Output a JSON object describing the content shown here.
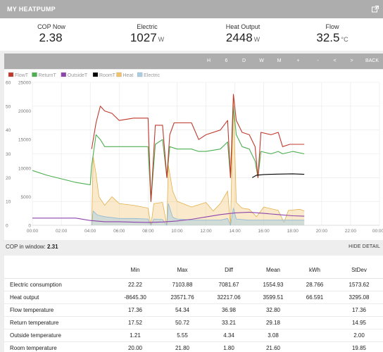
{
  "header": {
    "title": "MY HEATPUMP",
    "external_icon": "external-link-icon"
  },
  "stats": [
    {
      "label": "COP Now",
      "value": "2.38",
      "unit": ""
    },
    {
      "label": "Electric",
      "value": "1027",
      "unit": "W"
    },
    {
      "label": "Heat Output",
      "value": "2448",
      "unit": "W"
    },
    {
      "label": "Flow",
      "value": "32.5",
      "unit": "°C"
    }
  ],
  "toolbar": {
    "buttons": [
      "H",
      "6",
      "D",
      "W",
      "M",
      "+",
      "-",
      "<",
      ">",
      "BACK"
    ]
  },
  "chart_data": {
    "type": "line",
    "legend": [
      {
        "name": "FlowT",
        "color": "#c0392b"
      },
      {
        "name": "ReturnT",
        "color": "#4caf50"
      },
      {
        "name": "OutsideT",
        "color": "#8e44ad"
      },
      {
        "name": "RoomT",
        "color": "#000000"
      },
      {
        "name": "Heat",
        "color": "#f0c36b"
      },
      {
        "name": "Electric",
        "color": "#a9cde3"
      }
    ],
    "y_left_ticks": [
      "0",
      "10",
      "20",
      "30",
      "40",
      "50",
      "60"
    ],
    "y_right_ticks": [
      "0",
      "5000",
      "10000",
      "15000",
      "20000",
      "25000"
    ],
    "x_ticks": [
      "00:00",
      "02:00",
      "04:00",
      "06:00",
      "08:00",
      "10:00",
      "12:00",
      "14:00",
      "16:00",
      "18:00",
      "20:00",
      "22:00",
      "00:00"
    ],
    "y_left_range": [
      0,
      60
    ],
    "y_right_range": [
      0,
      25000
    ],
    "x_range_hours": [
      0,
      24
    ],
    "legend_placement": "top-left",
    "grid": true,
    "series": [
      {
        "name": "FlowT",
        "axis": "left",
        "points": [
          [
            4.1,
            32
          ],
          [
            4.4,
            43
          ],
          [
            4.7,
            50
          ],
          [
            5,
            48
          ],
          [
            5.5,
            47
          ],
          [
            6,
            44
          ],
          [
            7,
            45
          ],
          [
            7.8,
            45
          ],
          [
            8,
            45
          ],
          [
            8.2,
            10
          ],
          [
            8.5,
            42
          ],
          [
            9,
            42
          ],
          [
            9.3,
            20
          ],
          [
            9.5,
            38
          ],
          [
            9.8,
            43
          ],
          [
            11,
            43
          ],
          [
            11.5,
            36
          ],
          [
            12,
            38
          ],
          [
            13,
            40
          ],
          [
            13.5,
            44
          ],
          [
            13.7,
            20
          ],
          [
            13.9,
            55
          ],
          [
            14.1,
            44
          ],
          [
            14.5,
            39
          ],
          [
            15,
            38
          ],
          [
            15.4,
            33
          ],
          [
            15.6,
            20
          ],
          [
            15.8,
            39
          ],
          [
            16.5,
            38
          ],
          [
            17,
            39
          ],
          [
            17.3,
            33
          ],
          [
            17.8,
            34
          ],
          [
            18.5,
            34
          ],
          [
            18.8,
            34
          ]
        ]
      },
      {
        "name": "ReturnT",
        "axis": "left",
        "points": [
          [
            0,
            23
          ],
          [
            1,
            21
          ],
          [
            2,
            19.5
          ],
          [
            3,
            18
          ],
          [
            4,
            17
          ],
          [
            4.1,
            25
          ],
          [
            4.4,
            38
          ],
          [
            4.7,
            36
          ],
          [
            5,
            33
          ],
          [
            6,
            33
          ],
          [
            7,
            33
          ],
          [
            8,
            33
          ],
          [
            8.2,
            10
          ],
          [
            8.5,
            34
          ],
          [
            9,
            36
          ],
          [
            9.3,
            20
          ],
          [
            9.5,
            33
          ],
          [
            10,
            32
          ],
          [
            11,
            32
          ],
          [
            11.5,
            31
          ],
          [
            12,
            31
          ],
          [
            13,
            32
          ],
          [
            13.5,
            35
          ],
          [
            13.7,
            20
          ],
          [
            13.9,
            50
          ],
          [
            14.1,
            38
          ],
          [
            14.5,
            33
          ],
          [
            15,
            32
          ],
          [
            15.4,
            27
          ],
          [
            15.6,
            20
          ],
          [
            15.8,
            31
          ],
          [
            16.5,
            30
          ],
          [
            17,
            31
          ],
          [
            17.3,
            30
          ],
          [
            18,
            31
          ],
          [
            18.8,
            30
          ]
        ]
      },
      {
        "name": "OutsideT",
        "axis": "left",
        "points": [
          [
            0,
            3
          ],
          [
            1,
            3
          ],
          [
            2,
            3
          ],
          [
            3,
            3
          ],
          [
            4,
            2
          ],
          [
            5,
            1.5
          ],
          [
            6,
            1.5
          ],
          [
            7,
            1.3
          ],
          [
            8,
            1.2
          ],
          [
            9,
            1.4
          ],
          [
            10,
            1.8
          ],
          [
            11,
            2.5
          ],
          [
            12,
            3.5
          ],
          [
            13,
            4.5
          ],
          [
            14,
            5.2
          ],
          [
            15,
            5.5
          ],
          [
            16,
            5
          ],
          [
            17,
            4.5
          ],
          [
            18,
            4
          ],
          [
            18.8,
            3.8
          ]
        ]
      },
      {
        "name": "RoomT",
        "axis": "left",
        "points": [
          [
            15.2,
            20
          ],
          [
            15.5,
            21
          ],
          [
            16,
            21.3
          ],
          [
            17,
            21.5
          ],
          [
            18,
            21.6
          ],
          [
            18.8,
            21.4
          ]
        ]
      },
      {
        "name": "Heat",
        "axis": "right",
        "points": [
          [
            4.1,
            0
          ],
          [
            4.2,
            12000
          ],
          [
            4.4,
            9000
          ],
          [
            4.6,
            5000
          ],
          [
            5,
            3500
          ],
          [
            5.5,
            5000
          ],
          [
            6,
            3800
          ],
          [
            7,
            3500
          ],
          [
            8,
            3000
          ],
          [
            8.2,
            0
          ],
          [
            8.4,
            3800
          ],
          [
            9,
            4000
          ],
          [
            9.3,
            0
          ],
          [
            9.4,
            10500
          ],
          [
            9.7,
            6000
          ],
          [
            10,
            4200
          ],
          [
            11,
            3200
          ],
          [
            12,
            4000
          ],
          [
            12.5,
            2500
          ],
          [
            13,
            3800
          ],
          [
            13.5,
            6000
          ],
          [
            13.7,
            0
          ],
          [
            13.9,
            22000
          ],
          [
            14.1,
            4000
          ],
          [
            14.5,
            3000
          ],
          [
            15,
            2800
          ],
          [
            15.5,
            1500
          ],
          [
            16,
            3200
          ],
          [
            17,
            2600
          ],
          [
            17.4,
            500
          ],
          [
            17.7,
            2600
          ],
          [
            18.5,
            2800
          ],
          [
            18.8,
            2500
          ]
        ]
      },
      {
        "name": "Electric",
        "axis": "right",
        "points": [
          [
            4.1,
            0
          ],
          [
            4.2,
            2500
          ],
          [
            4.5,
            1800
          ],
          [
            5,
            1500
          ],
          [
            6,
            1200
          ],
          [
            7,
            1200
          ],
          [
            8,
            1100
          ],
          [
            8.2,
            0
          ],
          [
            8.4,
            1100
          ],
          [
            9,
            1000
          ],
          [
            9.3,
            0
          ],
          [
            9.4,
            3800
          ],
          [
            9.7,
            1400
          ],
          [
            10,
            1100
          ],
          [
            11,
            900
          ],
          [
            12,
            900
          ],
          [
            13,
            900
          ],
          [
            13.5,
            1200
          ],
          [
            13.7,
            0
          ],
          [
            13.9,
            3000
          ],
          [
            14.1,
            1100
          ],
          [
            15,
            900
          ],
          [
            16,
            900
          ],
          [
            17,
            900
          ],
          [
            18,
            900
          ],
          [
            18.8,
            900
          ]
        ]
      }
    ]
  },
  "cop_window": {
    "label": "COP in window:",
    "value": "2.31"
  },
  "hide_detail": "HIDE DETAIL",
  "table": {
    "headers": [
      "",
      "Min",
      "Max",
      "Diff",
      "Mean",
      "kWh",
      "StDev"
    ],
    "rows": [
      [
        "Electric consumption",
        "22.22",
        "7103.88",
        "7081.67",
        "1554.93",
        "28.766",
        "1573.62"
      ],
      [
        "Heat output",
        "-8645.30",
        "23571.76",
        "32217.06",
        "3599.51",
        "66.591",
        "3295.08"
      ],
      [
        "Flow temperature",
        "17.36",
        "54.34",
        "36.98",
        "32.80",
        "",
        "17.36"
      ],
      [
        "Return temperature",
        "17.52",
        "50.72",
        "33.21",
        "29.18",
        "",
        "14.95"
      ],
      [
        "Outside temperature",
        "1.21",
        "5.55",
        "4.34",
        "3.08",
        "",
        "2.00"
      ],
      [
        "Room temperature",
        "20.00",
        "21.80",
        "1.80",
        "21.60",
        "",
        "19.85"
      ]
    ]
  }
}
